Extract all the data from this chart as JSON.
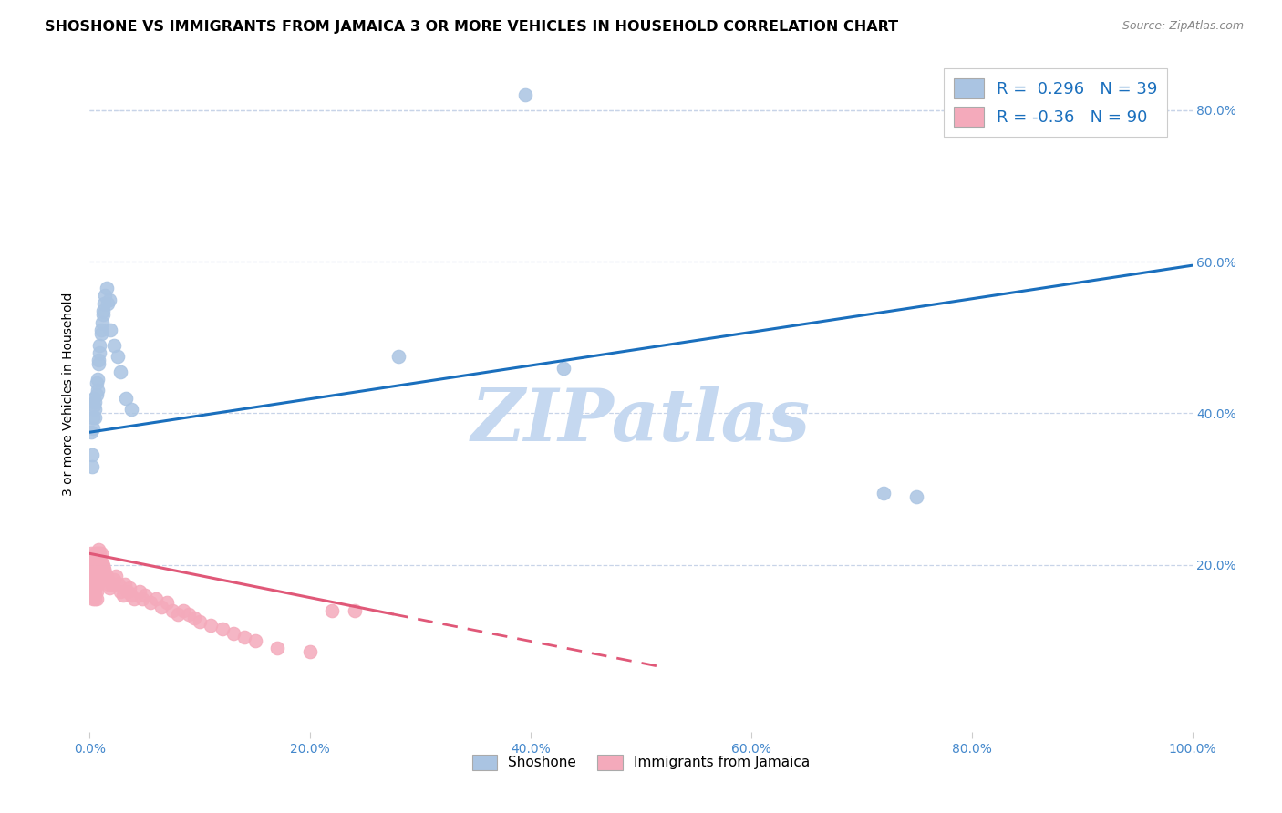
{
  "title": "SHOSHONE VS IMMIGRANTS FROM JAMAICA 3 OR MORE VEHICLES IN HOUSEHOLD CORRELATION CHART",
  "source": "Source: ZipAtlas.com",
  "xlabel_ticks": [
    "0.0%",
    "20.0%",
    "40.0%",
    "60.0%",
    "80.0%",
    "100.0%"
  ],
  "xlabel_vals": [
    0.0,
    0.2,
    0.4,
    0.6,
    0.8,
    1.0
  ],
  "ylabel": "3 or more Vehicles in Household",
  "ylabel_ticks": [
    "20.0%",
    "40.0%",
    "60.0%",
    "80.0%"
  ],
  "ylabel_vals": [
    0.2,
    0.4,
    0.6,
    0.8
  ],
  "xlim": [
    0,
    1.0
  ],
  "ylim": [
    -0.02,
    0.87
  ],
  "shoshone_R": 0.296,
  "shoshone_N": 39,
  "jamaica_R": -0.36,
  "jamaica_N": 90,
  "shoshone_color": "#aac4e2",
  "jamaica_color": "#f4aabb",
  "shoshone_line_color": "#1a6fbd",
  "jamaica_line_color": "#e05878",
  "watermark_color": "#c5d8f0",
  "title_fontsize": 11.5,
  "axis_label_fontsize": 10,
  "tick_fontsize": 10,
  "legend_fontsize": 13,
  "shoshone_line_x0": 0.0,
  "shoshone_line_x1": 1.0,
  "shoshone_line_y0": 0.375,
  "shoshone_line_y1": 0.595,
  "jamaica_line_solid_x0": 0.0,
  "jamaica_line_solid_x1": 0.275,
  "jamaica_line_y0": 0.215,
  "jamaica_line_y1": 0.135,
  "jamaica_line_dash_x0": 0.275,
  "jamaica_line_dash_x1": 0.52,
  "jamaica_line_dash_y0": 0.135,
  "jamaica_line_dash_y1": 0.065,
  "shoshone_points": [
    [
      0.001,
      0.375
    ],
    [
      0.002,
      0.345
    ],
    [
      0.002,
      0.33
    ],
    [
      0.003,
      0.38
    ],
    [
      0.003,
      0.395
    ],
    [
      0.004,
      0.42
    ],
    [
      0.004,
      0.41
    ],
    [
      0.005,
      0.415
    ],
    [
      0.005,
      0.405
    ],
    [
      0.005,
      0.395
    ],
    [
      0.006,
      0.44
    ],
    [
      0.006,
      0.425
    ],
    [
      0.007,
      0.43
    ],
    [
      0.007,
      0.445
    ],
    [
      0.008,
      0.47
    ],
    [
      0.008,
      0.465
    ],
    [
      0.009,
      0.48
    ],
    [
      0.009,
      0.49
    ],
    [
      0.01,
      0.505
    ],
    [
      0.01,
      0.51
    ],
    [
      0.011,
      0.52
    ],
    [
      0.012,
      0.53
    ],
    [
      0.012,
      0.535
    ],
    [
      0.013,
      0.545
    ],
    [
      0.014,
      0.555
    ],
    [
      0.015,
      0.565
    ],
    [
      0.016,
      0.545
    ],
    [
      0.018,
      0.55
    ],
    [
      0.019,
      0.51
    ],
    [
      0.022,
      0.49
    ],
    [
      0.025,
      0.475
    ],
    [
      0.028,
      0.455
    ],
    [
      0.033,
      0.42
    ],
    [
      0.038,
      0.405
    ],
    [
      0.72,
      0.295
    ],
    [
      0.75,
      0.29
    ],
    [
      0.395,
      0.82
    ],
    [
      0.28,
      0.475
    ],
    [
      0.43,
      0.46
    ]
  ],
  "jamaica_points": [
    [
      0.001,
      0.205
    ],
    [
      0.001,
      0.195
    ],
    [
      0.001,
      0.215
    ],
    [
      0.002,
      0.205
    ],
    [
      0.002,
      0.195
    ],
    [
      0.002,
      0.185
    ],
    [
      0.002,
      0.175
    ],
    [
      0.003,
      0.21
    ],
    [
      0.003,
      0.2
    ],
    [
      0.003,
      0.19
    ],
    [
      0.003,
      0.18
    ],
    [
      0.003,
      0.17
    ],
    [
      0.003,
      0.16
    ],
    [
      0.003,
      0.155
    ],
    [
      0.004,
      0.21
    ],
    [
      0.004,
      0.2
    ],
    [
      0.004,
      0.19
    ],
    [
      0.004,
      0.18
    ],
    [
      0.004,
      0.17
    ],
    [
      0.004,
      0.16
    ],
    [
      0.005,
      0.215
    ],
    [
      0.005,
      0.205
    ],
    [
      0.005,
      0.195
    ],
    [
      0.005,
      0.185
    ],
    [
      0.005,
      0.175
    ],
    [
      0.005,
      0.165
    ],
    [
      0.005,
      0.155
    ],
    [
      0.006,
      0.215
    ],
    [
      0.006,
      0.205
    ],
    [
      0.006,
      0.195
    ],
    [
      0.006,
      0.185
    ],
    [
      0.006,
      0.175
    ],
    [
      0.006,
      0.165
    ],
    [
      0.006,
      0.155
    ],
    [
      0.007,
      0.215
    ],
    [
      0.007,
      0.205
    ],
    [
      0.007,
      0.195
    ],
    [
      0.007,
      0.185
    ],
    [
      0.007,
      0.175
    ],
    [
      0.008,
      0.22
    ],
    [
      0.008,
      0.21
    ],
    [
      0.008,
      0.2
    ],
    [
      0.008,
      0.19
    ],
    [
      0.008,
      0.18
    ],
    [
      0.009,
      0.215
    ],
    [
      0.009,
      0.205
    ],
    [
      0.009,
      0.195
    ],
    [
      0.01,
      0.215
    ],
    [
      0.01,
      0.205
    ],
    [
      0.01,
      0.195
    ],
    [
      0.012,
      0.2
    ],
    [
      0.013,
      0.195
    ],
    [
      0.014,
      0.19
    ],
    [
      0.015,
      0.185
    ],
    [
      0.016,
      0.18
    ],
    [
      0.017,
      0.175
    ],
    [
      0.018,
      0.17
    ],
    [
      0.02,
      0.175
    ],
    [
      0.022,
      0.18
    ],
    [
      0.024,
      0.185
    ],
    [
      0.026,
      0.175
    ],
    [
      0.028,
      0.165
    ],
    [
      0.03,
      0.16
    ],
    [
      0.032,
      0.175
    ],
    [
      0.034,
      0.165
    ],
    [
      0.036,
      0.17
    ],
    [
      0.038,
      0.16
    ],
    [
      0.04,
      0.155
    ],
    [
      0.045,
      0.165
    ],
    [
      0.048,
      0.155
    ],
    [
      0.05,
      0.16
    ],
    [
      0.055,
      0.15
    ],
    [
      0.06,
      0.155
    ],
    [
      0.065,
      0.145
    ],
    [
      0.07,
      0.15
    ],
    [
      0.075,
      0.14
    ],
    [
      0.08,
      0.135
    ],
    [
      0.085,
      0.14
    ],
    [
      0.09,
      0.135
    ],
    [
      0.095,
      0.13
    ],
    [
      0.1,
      0.125
    ],
    [
      0.11,
      0.12
    ],
    [
      0.12,
      0.115
    ],
    [
      0.13,
      0.11
    ],
    [
      0.14,
      0.105
    ],
    [
      0.15,
      0.1
    ],
    [
      0.17,
      0.09
    ],
    [
      0.2,
      0.085
    ],
    [
      0.22,
      0.14
    ],
    [
      0.24,
      0.14
    ]
  ],
  "background_color": "#ffffff",
  "grid_color": "#c8d4e8",
  "right_tick_color": "#4488cc"
}
